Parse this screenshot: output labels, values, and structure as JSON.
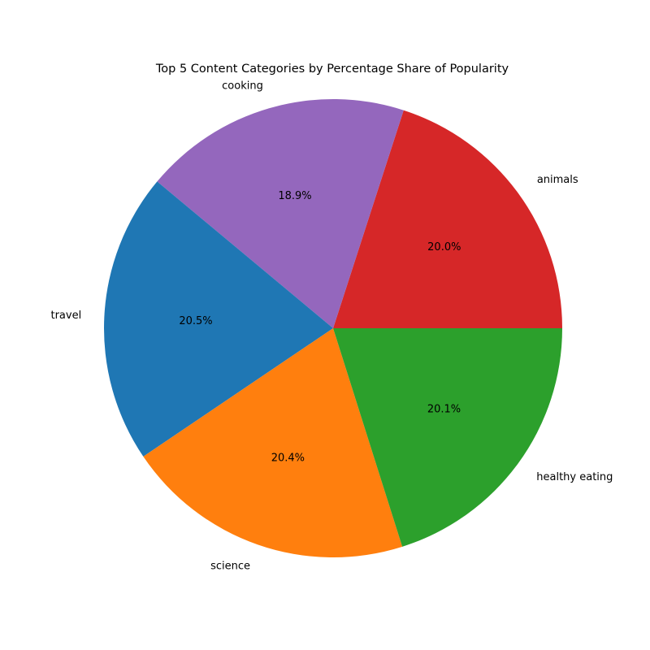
{
  "chart_data": {
    "type": "pie",
    "title": "Top 5 Content Categories by Percentage Share of Popularity",
    "start_category": "animals",
    "direction": "counterclockwise",
    "slices": [
      {
        "label": "animals",
        "value": 20.0,
        "pct_label": "20.0%",
        "color": "#d62728"
      },
      {
        "label": "cooking",
        "value": 18.9,
        "pct_label": "18.9%",
        "color": "#9467bd"
      },
      {
        "label": "travel",
        "value": 20.5,
        "pct_label": "20.5%",
        "color": "#1f77b4"
      },
      {
        "label": "science",
        "value": 20.4,
        "pct_label": "20.4%",
        "color": "#ff7f0e"
      },
      {
        "label": "healthy eating",
        "value": 20.1,
        "pct_label": "20.1%",
        "color": "#2ca02c"
      }
    ]
  }
}
